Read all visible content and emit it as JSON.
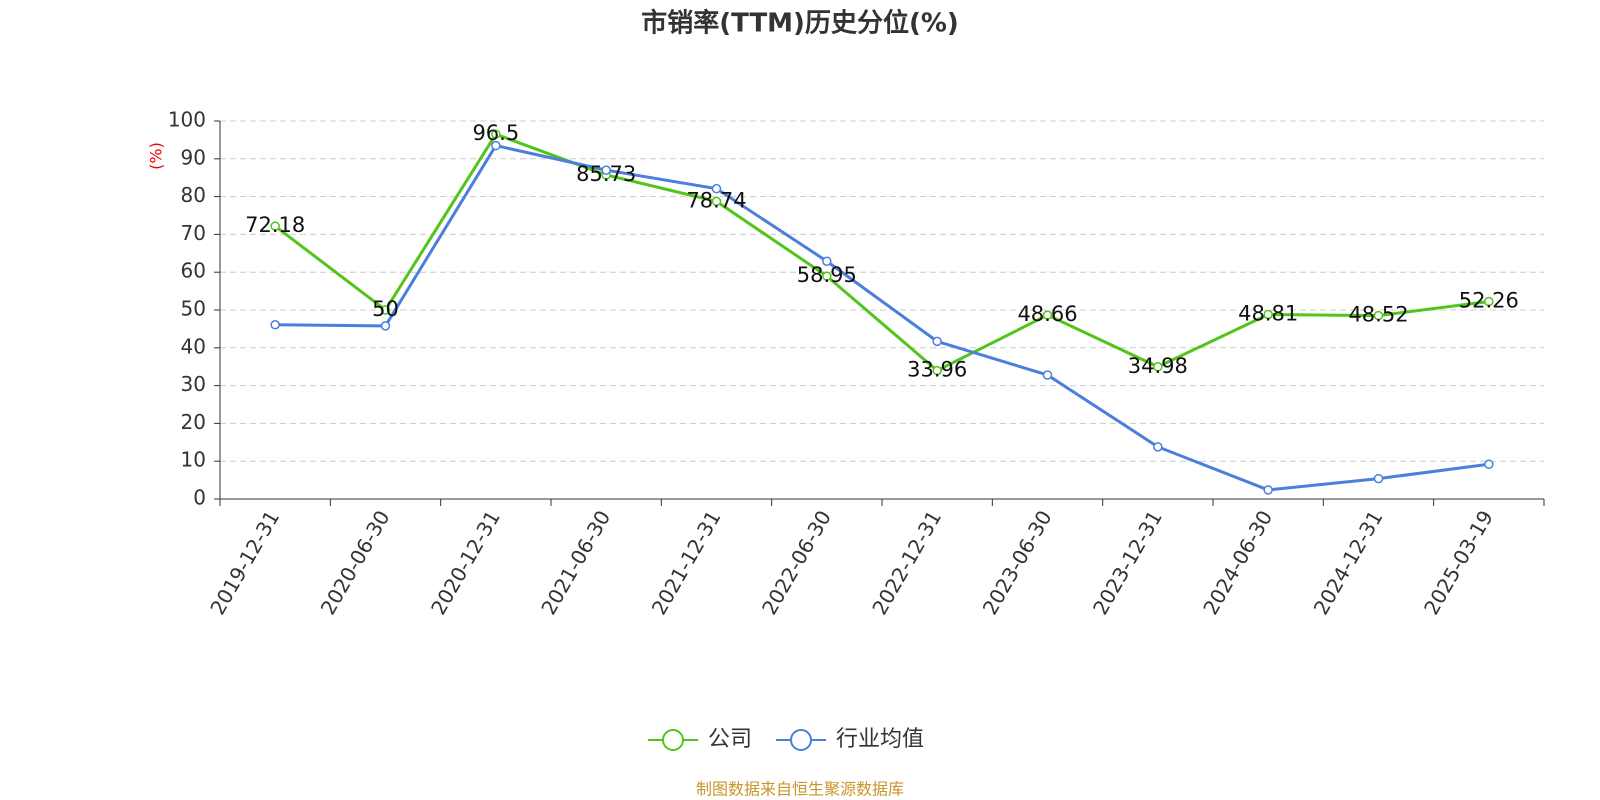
{
  "chart_data": {
    "type": "line",
    "title": "市销率(TTM)历史分位(%)",
    "ylabel": "(%)",
    "source": "制图数据来自恒生聚源数据库",
    "categories": [
      "2019-12-31",
      "2020-06-30",
      "2020-12-31",
      "2021-06-30",
      "2021-12-31",
      "2022-06-30",
      "2022-12-31",
      "2023-06-30",
      "2023-12-31",
      "2024-06-30",
      "2024-12-31",
      "2025-03-19"
    ],
    "series": [
      {
        "name": "公司",
        "color": "#52c41a",
        "values": [
          72.18,
          50,
          96.5,
          85.73,
          78.74,
          58.95,
          33.96,
          48.66,
          34.98,
          48.81,
          48.52,
          52.26
        ],
        "labels": true
      },
      {
        "name": "行业均值",
        "color": "#4a7fdc",
        "values": [
          46.1,
          45.8,
          93.5,
          87,
          82.1,
          62.9,
          41.7,
          32.8,
          13.8,
          2.4,
          5.4,
          9.2
        ],
        "labels": false
      }
    ],
    "ylim": [
      0,
      100
    ],
    "yticks": [
      0,
      10,
      20,
      30,
      40,
      50,
      60,
      70,
      80,
      90,
      100
    ],
    "grid": true
  }
}
